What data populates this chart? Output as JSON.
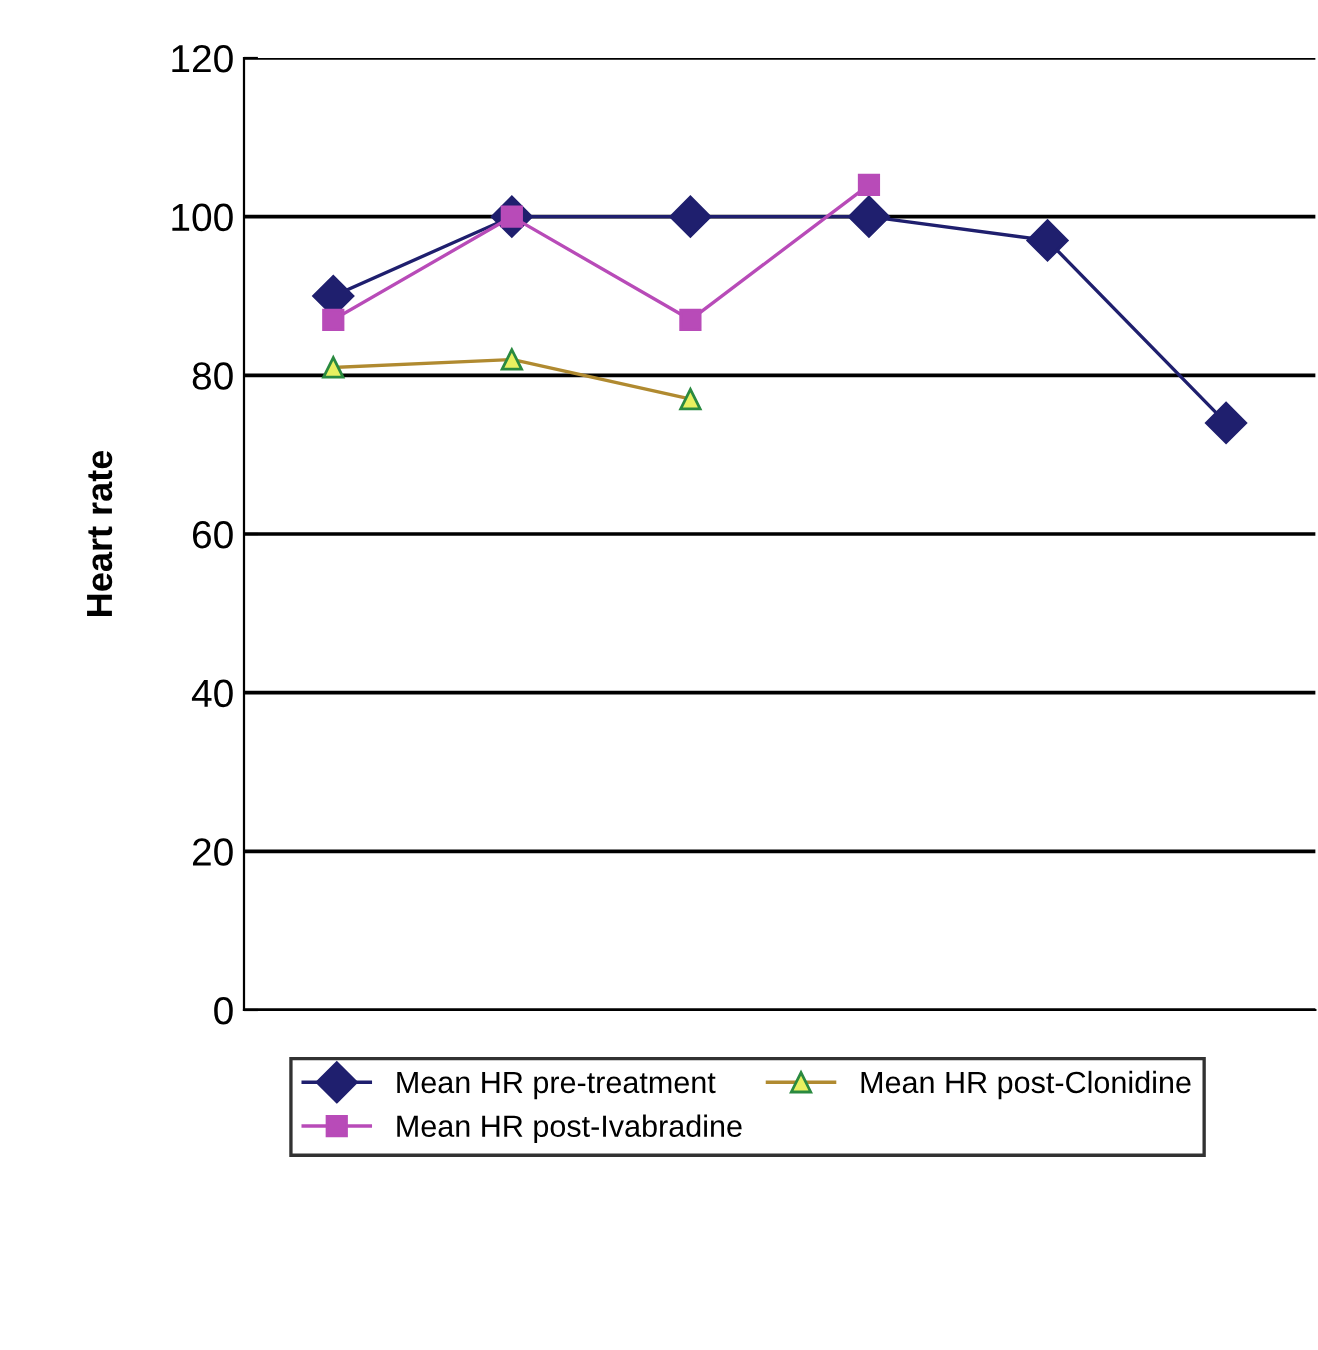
{
  "chart_data": {
    "type": "line",
    "ylabel": "Heart rate",
    "categories": [
      null,
      null,
      null,
      null,
      null,
      null
    ],
    "ylim": [
      0,
      120
    ],
    "yticks": [
      0,
      20,
      40,
      60,
      80,
      100,
      120
    ],
    "grid": "y",
    "legend": "bottom",
    "series": [
      {
        "name": "Mean HR pre-treatment",
        "color": "#1f1f6e",
        "marker": "diamond",
        "values": [
          90,
          100,
          100,
          100,
          97,
          74
        ]
      },
      {
        "name": "Mean HR post-Ivabradine",
        "color": "#b84bb8",
        "marker": "square",
        "values": [
          87,
          100,
          87,
          104,
          null,
          null
        ]
      },
      {
        "name": "Mean HR post-Clonidine",
        "color": "#b08a30",
        "marker": "triangle",
        "values": [
          81,
          82,
          77,
          null,
          null,
          null
        ]
      }
    ]
  }
}
